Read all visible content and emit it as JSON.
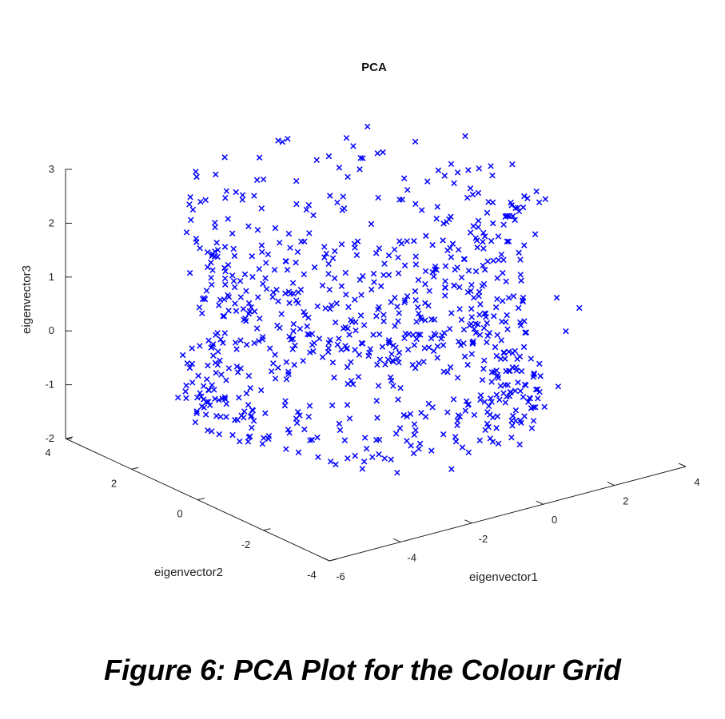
{
  "caption": "Figure 6: PCA Plot for the Colour Grid",
  "chart_data": {
    "type": "scatter",
    "projection": "3d",
    "title": "PCA",
    "xlabel": "eigenvector1",
    "ylabel": "eigenvector2",
    "zlabel": "eigenvector3",
    "xlim": [
      -6,
      4
    ],
    "ylim": [
      -4,
      4
    ],
    "zlim": [
      -2,
      3
    ],
    "xticks": [
      "-6",
      "-4",
      "-2",
      "0",
      "2",
      "4"
    ],
    "yticks": [
      "-4",
      "-2",
      "0",
      "2",
      "4"
    ],
    "zticks": [
      "-2",
      "-1",
      "0",
      "1",
      "2",
      "3"
    ],
    "marker": "x",
    "color": "#0000ff",
    "grid": false,
    "series": [
      {
        "x": [
          -3.8,
          -2.1,
          0.3,
          1.9,
          -1.2,
          0.8,
          -2.9,
          1.4,
          -0.4,
          2.3,
          -3.1,
          -1.7,
          0.1,
          1.1,
          -2.4,
          2.6,
          -0.9,
          -3.5,
          1.7,
          -1.4,
          0.6,
          -2.6,
          2.0,
          -0.2,
          -3.3,
          1.3,
          -1.9,
          0.4,
          2.5,
          -0.7,
          -2.2,
          1.0,
          -3.6,
          0.9,
          -1.1,
          2.2,
          -2.8,
          0.0,
          1.6,
          -1.5,
          -3.0,
          2.4,
          -0.5,
          0.7,
          -2.5,
          1.8,
          -1.8,
          -3.4,
          0.2,
          2.1,
          -1.0,
          -2.3,
          1.5,
          -0.3,
          -3.7,
          2.7,
          -1.3,
          0.5,
          -2.0,
          1.2,
          -3.9,
          2.0,
          -0.8,
          -2.7,
          1.4,
          0.2,
          -1.6,
          2.6,
          -3.2,
          -0.1,
          1.1,
          -2.4,
          0.9,
          -1.2,
          2.3,
          -3.5,
          0.4,
          1.9,
          -2.1,
          -0.6
        ],
        "y": [
          2.1,
          -1.3,
          0.6,
          -2.4,
          1.8,
          2.7,
          -0.5,
          0.9,
          -1.9,
          1.5,
          -2.8,
          0.2,
          2.9,
          -0.8,
          1.1,
          -1.6,
          2.4,
          0.4,
          -2.2,
          -0.3,
          1.7,
          2.5,
          -1.1,
          -2.6,
          1.3,
          0.0,
          -0.9,
          2.2,
          0.7,
          -1.4,
          2.8,
          -2.0,
          -1.2,
          1.0,
          0.5,
          -0.6,
          1.9,
          -2.9,
          2.3,
          -1.7,
          0.8,
          -2.5,
          1.4,
          -0.2,
          -2.3,
          2.6,
          0.3,
          -0.7,
          -1.5,
          1.2,
          2.0,
          -2.7,
          0.1,
          1.6,
          -1.8,
          2.4,
          -0.4,
          -2.1,
          1.5,
          2.9,
          0.6,
          -1.0,
          -2.6,
          0.9,
          -0.1,
          2.2,
          -1.3,
          1.8,
          -2.4,
          0.4,
          2.7,
          -0.8,
          -1.9,
          1.1,
          -2.2,
          0.0,
          2.5,
          -1.6,
          0.7,
          1.3
        ],
        "z": [
          0.9,
          -1.2,
          2.3,
          -0.6,
          1.6,
          -1.4,
          2.1,
          -0.2,
          1.1,
          -1.5,
          0.4,
          2.6,
          -0.9,
          1.8,
          -1.7,
          0.7,
          -0.4,
          1.3,
          -1.0,
          2.4,
          -1.8,
          0.2,
          1.5,
          -0.7,
          -1.3,
          2.8,
          0.6,
          -1.6,
          1.0,
          2.2,
          -0.5,
          -1.1,
          1.9,
          -1.9,
          0.3,
          2.0,
          -0.8,
          1.2,
          -1.4,
          2.5,
          -0.3,
          0.8,
          -1.6,
          1.7,
          -0.1,
          -1.2,
          2.7,
          0.5,
          -0.9,
          1.4,
          -1.7,
          2.2,
          0.0,
          -1.3,
          1.1,
          -0.6,
          2.9,
          -1.5,
          0.7,
          -1.8,
          1.6,
          2.3,
          -0.4,
          -1.0,
          1.2,
          0.1,
          -1.9,
          2.0,
          -0.7,
          1.5,
          -1.1,
          0.9,
          2.6,
          -1.4,
          0.3,
          -0.2,
          1.8,
          -1.6,
          2.4,
          -0.5
        ]
      }
    ]
  }
}
